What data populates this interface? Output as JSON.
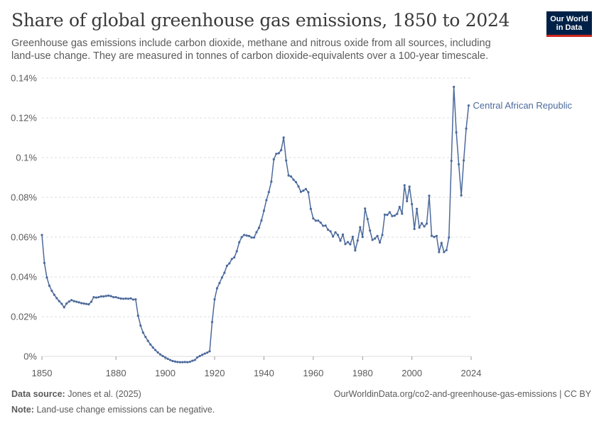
{
  "header": {
    "title": "Share of global greenhouse gas emissions, 1850 to 2024",
    "subtitle": "Greenhouse gas emissions include carbon dioxide, methane and nitrous oxide from all sources, including land-use change. They are measured in tonnes of carbon dioxide-equivalents over a 100-year timescale.",
    "logo_line1": "Our World",
    "logo_line2": "in Data"
  },
  "footer": {
    "source_label": "Data source:",
    "source_text": "Jones et al. (2025)",
    "url_text": "OurWorldinData.org/co2-and-greenhouse-gas-emissions | CC BY",
    "note_label": "Note:",
    "note_text": "Land-use change emissions can be negative."
  },
  "colors": {
    "series": "#4c6a9c",
    "grid": "#dddddd",
    "axis": "#999999",
    "text": "#5b5b5b"
  },
  "chart_data": {
    "type": "line",
    "title": "Share of global greenhouse gas emissions, 1850 to 2024",
    "xlim": [
      1850,
      2024
    ],
    "ylim": [
      -0.0,
      0.14
    ],
    "x_ticks": [
      1850,
      1880,
      1900,
      1920,
      1940,
      1960,
      1980,
      2000,
      2024
    ],
    "y_ticks": [
      0,
      0.02,
      0.04,
      0.06,
      0.08,
      0.1,
      0.12,
      0.14
    ],
    "y_tick_labels": [
      "0%",
      "0.02%",
      "0.04%",
      "0.06%",
      "0.08%",
      "0.1%",
      "0.12%",
      "0.14%"
    ],
    "grid": "horizontal dashed",
    "series": [
      {
        "name": "Central African Republic",
        "points": [
          [
            1850,
            0.0611
          ],
          [
            1851,
            0.047
          ],
          [
            1852,
            0.0397
          ],
          [
            1853,
            0.0356
          ],
          [
            1854,
            0.033
          ],
          [
            1855,
            0.031
          ],
          [
            1856,
            0.0293
          ],
          [
            1857,
            0.0278
          ],
          [
            1858,
            0.0265
          ],
          [
            1859,
            0.0247
          ],
          [
            1860,
            0.0266
          ],
          [
            1861,
            0.0276
          ],
          [
            1862,
            0.0283
          ],
          [
            1863,
            0.0278
          ],
          [
            1864,
            0.0275
          ],
          [
            1865,
            0.0272
          ],
          [
            1866,
            0.0268
          ],
          [
            1867,
            0.0266
          ],
          [
            1868,
            0.0264
          ],
          [
            1869,
            0.0262
          ],
          [
            1870,
            0.0275
          ],
          [
            1871,
            0.0298
          ],
          [
            1872,
            0.0296
          ],
          [
            1873,
            0.0298
          ],
          [
            1874,
            0.0302
          ],
          [
            1875,
            0.0302
          ],
          [
            1876,
            0.0304
          ],
          [
            1877,
            0.0306
          ],
          [
            1878,
            0.0303
          ],
          [
            1879,
            0.0298
          ],
          [
            1880,
            0.0298
          ],
          [
            1881,
            0.0294
          ],
          [
            1882,
            0.0291
          ],
          [
            1883,
            0.029
          ],
          [
            1884,
            0.0291
          ],
          [
            1885,
            0.029
          ],
          [
            1886,
            0.0292
          ],
          [
            1887,
            0.0286
          ],
          [
            1888,
            0.0287
          ],
          [
            1889,
            0.0205
          ],
          [
            1890,
            0.0155
          ],
          [
            1891,
            0.012
          ],
          [
            1892,
            0.0098
          ],
          [
            1893,
            0.0078
          ],
          [
            1894,
            0.006
          ],
          [
            1895,
            0.0045
          ],
          [
            1896,
            0.0032
          ],
          [
            1897,
            0.002
          ],
          [
            1898,
            0.001
          ],
          [
            1899,
            0.0002
          ],
          [
            1900,
            -0.0005
          ],
          [
            1901,
            -0.0012
          ],
          [
            1902,
            -0.0018
          ],
          [
            1903,
            -0.0023
          ],
          [
            1904,
            -0.0026
          ],
          [
            1905,
            -0.0028
          ],
          [
            1906,
            -0.0029
          ],
          [
            1907,
            -0.0029
          ],
          [
            1908,
            -0.0028
          ],
          [
            1909,
            -0.0029
          ],
          [
            1910,
            -0.0027
          ],
          [
            1911,
            -0.0022
          ],
          [
            1912,
            -0.0018
          ],
          [
            1913,
            -0.0005
          ],
          [
            1914,
            0.0002
          ],
          [
            1915,
            0.0008
          ],
          [
            1916,
            0.0014
          ],
          [
            1917,
            0.0019
          ],
          [
            1918,
            0.0026
          ],
          [
            1919,
            0.0173
          ],
          [
            1920,
            0.0287
          ],
          [
            1921,
            0.0343
          ],
          [
            1922,
            0.0369
          ],
          [
            1923,
            0.0397
          ],
          [
            1924,
            0.0421
          ],
          [
            1925,
            0.0456
          ],
          [
            1926,
            0.0468
          ],
          [
            1927,
            0.049
          ],
          [
            1928,
            0.0498
          ],
          [
            1929,
            0.0529
          ],
          [
            1930,
            0.0574
          ],
          [
            1931,
            0.06
          ],
          [
            1932,
            0.0611
          ],
          [
            1933,
            0.0608
          ],
          [
            1934,
            0.0606
          ],
          [
            1935,
            0.0598
          ],
          [
            1936,
            0.0598
          ],
          [
            1937,
            0.0625
          ],
          [
            1938,
            0.0647
          ],
          [
            1939,
            0.0684
          ],
          [
            1940,
            0.0733
          ],
          [
            1941,
            0.0786
          ],
          [
            1942,
            0.0827
          ],
          [
            1943,
            0.0879
          ],
          [
            1944,
            0.0991
          ],
          [
            1945,
            0.1019
          ],
          [
            1946,
            0.1022
          ],
          [
            1947,
            0.1038
          ],
          [
            1948,
            0.1101
          ],
          [
            1949,
            0.0986
          ],
          [
            1950,
            0.091
          ],
          [
            1951,
            0.0905
          ],
          [
            1952,
            0.0889
          ],
          [
            1953,
            0.0877
          ],
          [
            1954,
            0.0855
          ],
          [
            1955,
            0.0828
          ],
          [
            1956,
            0.0834
          ],
          [
            1957,
            0.0842
          ],
          [
            1958,
            0.0826
          ],
          [
            1959,
            0.0742
          ],
          [
            1960,
            0.0694
          ],
          [
            1961,
            0.0683
          ],
          [
            1962,
            0.0683
          ],
          [
            1963,
            0.0673
          ],
          [
            1964,
            0.0657
          ],
          [
            1965,
            0.0658
          ],
          [
            1966,
            0.0637
          ],
          [
            1967,
            0.0629
          ],
          [
            1968,
            0.0603
          ],
          [
            1969,
            0.0624
          ],
          [
            1970,
            0.0611
          ],
          [
            1971,
            0.0582
          ],
          [
            1972,
            0.0613
          ],
          [
            1973,
            0.0565
          ],
          [
            1974,
            0.0575
          ],
          [
            1975,
            0.0564
          ],
          [
            1976,
            0.0602
          ],
          [
            1977,
            0.0533
          ],
          [
            1978,
            0.0583
          ],
          [
            1979,
            0.065
          ],
          [
            1980,
            0.0601
          ],
          [
            1981,
            0.0744
          ],
          [
            1982,
            0.0691
          ],
          [
            1983,
            0.0633
          ],
          [
            1984,
            0.0586
          ],
          [
            1985,
            0.0593
          ],
          [
            1986,
            0.0606
          ],
          [
            1987,
            0.0573
          ],
          [
            1988,
            0.0611
          ],
          [
            1989,
            0.0713
          ],
          [
            1990,
            0.0712
          ],
          [
            1991,
            0.0725
          ],
          [
            1992,
            0.0706
          ],
          [
            1993,
            0.0708
          ],
          [
            1994,
            0.0717
          ],
          [
            1995,
            0.0752
          ],
          [
            1996,
            0.0718
          ],
          [
            1997,
            0.0861
          ],
          [
            1998,
            0.0781
          ],
          [
            1999,
            0.0854
          ],
          [
            2000,
            0.0766
          ],
          [
            2001,
            0.0641
          ],
          [
            2002,
            0.0742
          ],
          [
            2003,
            0.0648
          ],
          [
            2004,
            0.067
          ],
          [
            2005,
            0.0654
          ],
          [
            2006,
            0.0668
          ],
          [
            2007,
            0.0808
          ],
          [
            2008,
            0.0607
          ],
          [
            2009,
            0.0601
          ],
          [
            2010,
            0.0606
          ],
          [
            2011,
            0.0525
          ],
          [
            2012,
            0.0571
          ],
          [
            2013,
            0.0525
          ],
          [
            2014,
            0.0535
          ],
          [
            2015,
            0.0598
          ],
          [
            2016,
            0.0984
          ],
          [
            2017,
            0.1356
          ],
          [
            2018,
            0.1127
          ],
          [
            2019,
            0.0966
          ],
          [
            2020,
            0.081
          ],
          [
            2021,
            0.0986
          ],
          [
            2022,
            0.1146
          ],
          [
            2023,
            0.1262
          ]
        ]
      }
    ]
  }
}
